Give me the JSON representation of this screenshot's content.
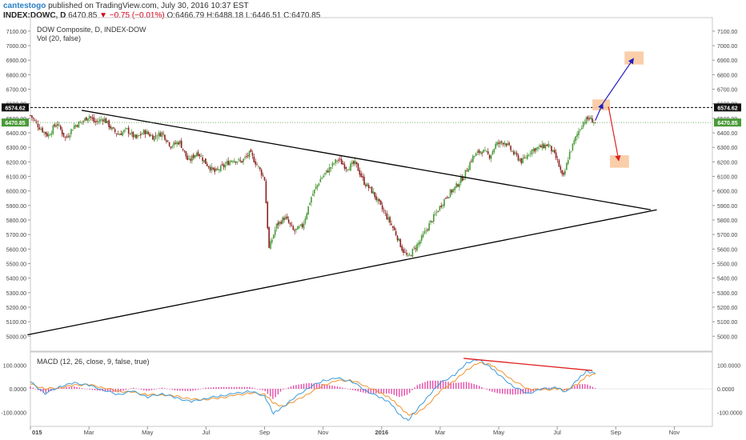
{
  "header": {
    "user": "cantestogo",
    "published": "published on TradingView.com, July 30, 2016 10:37 EST",
    "symbol": "INDEX:DOWC, D",
    "price": "6470.85",
    "arrow": "▼",
    "change": "−0.75 (−0.01%)",
    "ohlc": "O:6466.79 H:6488.18 L:6446.51 C:6470.85"
  },
  "legend": {
    "title": "DOW Composite, D, INDEX-DOW",
    "vol": "Vol (20, false)",
    "macd": "MACD (12, 26, close, 9, false, true)"
  },
  "price_labels": {
    "high": "6574.62",
    "last": "6470.85"
  },
  "colors": {
    "up": "#4a9a38",
    "down": "#8b1f1f",
    "macd_line": "#3a9ad9",
    "signal_line": "#f0922b",
    "histogram": "#e64aa8",
    "trend_line": "#000000",
    "last_badge": "#4a9a38",
    "target_box": "#f8c9a0",
    "arrow_up": "#1f1fbf",
    "arrow_down": "#e02020",
    "divergence": "#e02020"
  },
  "chart_data": [
    {
      "type": "candlestick",
      "title": "DOW Composite, D, INDEX-DOW",
      "yticks": [
        5000,
        5100,
        5200,
        5300,
        5400,
        5500,
        5600,
        5700,
        5800,
        5900,
        6000,
        6100,
        6200,
        6300,
        6400,
        6500,
        6600,
        6700,
        6800,
        6900,
        7000,
        7100
      ],
      "ytick_labels": [
        "5000.00",
        "5100.00",
        "5200.00",
        "5300.00",
        "5400.00",
        "5500.00",
        "5600.00",
        "5700.00",
        "5800.00",
        "5900.00",
        "6000.00",
        "6100.00",
        "6200.00",
        "6300.00",
        "6400.00",
        "6500.00",
        "6600.00",
        "6700.00",
        "6800.00",
        "6900.00",
        "7000.00",
        "7100.00"
      ],
      "ylim": [
        4930,
        7160
      ],
      "xtick_labels": [
        "015",
        "Mar",
        "May",
        "Jul",
        "Sep",
        "Nov",
        "2016",
        "Mar",
        "May",
        "Jul",
        "Sep",
        "Nov"
      ],
      "xlim_months": [
        0,
        23.3
      ],
      "xtick_months": [
        0,
        2,
        4,
        6,
        8,
        10,
        12,
        14,
        16,
        18,
        20,
        22
      ],
      "price_path": [
        [
          0,
          6520
        ],
        [
          0.3,
          6440
        ],
        [
          0.6,
          6380
        ],
        [
          0.9,
          6470
        ],
        [
          1.2,
          6360
        ],
        [
          1.5,
          6450
        ],
        [
          1.8,
          6480
        ],
        [
          2.0,
          6520
        ],
        [
          2.2,
          6470
        ],
        [
          2.5,
          6500
        ],
        [
          2.8,
          6420
        ],
        [
          3.0,
          6390
        ],
        [
          3.3,
          6420
        ],
        [
          3.6,
          6360
        ],
        [
          3.9,
          6410
        ],
        [
          4.2,
          6370
        ],
        [
          4.5,
          6400
        ],
        [
          4.8,
          6310
        ],
        [
          5.1,
          6340
        ],
        [
          5.4,
          6200
        ],
        [
          5.7,
          6270
        ],
        [
          6.0,
          6190
        ],
        [
          6.3,
          6130
        ],
        [
          6.6,
          6170
        ],
        [
          6.9,
          6220
        ],
        [
          7.2,
          6200
        ],
        [
          7.5,
          6260
        ],
        [
          7.8,
          6160
        ],
        [
          8.0,
          6080
        ],
        [
          8.15,
          5600
        ],
        [
          8.4,
          5760
        ],
        [
          8.7,
          5820
        ],
        [
          9.0,
          5720
        ],
        [
          9.3,
          5760
        ],
        [
          9.6,
          5960
        ],
        [
          9.9,
          6080
        ],
        [
          10.2,
          6150
        ],
        [
          10.5,
          6220
        ],
        [
          10.8,
          6160
        ],
        [
          11.1,
          6190
        ],
        [
          11.4,
          6060
        ],
        [
          11.7,
          5990
        ],
        [
          12.0,
          5880
        ],
        [
          12.3,
          5780
        ],
        [
          12.5,
          5700
        ],
        [
          12.7,
          5600
        ],
        [
          12.9,
          5540
        ],
        [
          13.1,
          5600
        ],
        [
          13.3,
          5650
        ],
        [
          13.6,
          5760
        ],
        [
          13.9,
          5860
        ],
        [
          14.2,
          5960
        ],
        [
          14.5,
          6020
        ],
        [
          14.8,
          6100
        ],
        [
          15.1,
          6230
        ],
        [
          15.4,
          6280
        ],
        [
          15.7,
          6240
        ],
        [
          15.9,
          6320
        ],
        [
          16.2,
          6340
        ],
        [
          16.5,
          6260
        ],
        [
          16.8,
          6200
        ],
        [
          17.1,
          6280
        ],
        [
          17.4,
          6300
        ],
        [
          17.7,
          6320
        ],
        [
          18.0,
          6210
        ],
        [
          18.2,
          6080
        ],
        [
          18.4,
          6250
        ],
        [
          18.7,
          6400
        ],
        [
          18.9,
          6480
        ],
        [
          19.1,
          6500
        ],
        [
          19.3,
          6470
        ]
      ],
      "trendlines": [
        {
          "from": [
            1.75,
            6555
          ],
          "to": [
            21.2,
            5870
          ]
        },
        {
          "from": [
            -0.1,
            5010
          ],
          "to": [
            21.4,
            5870
          ]
        }
      ],
      "resistance": 6574.62,
      "last_price": 6470.85,
      "target_boxes": [
        {
          "x": [
            19.2,
            19.8
          ],
          "y": [
            6555,
            6630
          ],
          "note": ""
        },
        {
          "x": [
            20.3,
            20.95
          ],
          "y": [
            6870,
            6960
          ],
          "note": ""
        },
        {
          "x": [
            19.8,
            20.45
          ],
          "y": [
            6160,
            6245
          ],
          "note": ""
        }
      ],
      "arrows": [
        {
          "from": [
            19.3,
            6485
          ],
          "to": [
            19.55,
            6600
          ],
          "color": "up"
        },
        {
          "from": [
            19.55,
            6600
          ],
          "to": [
            20.6,
            6910
          ],
          "color": "up"
        },
        {
          "from": [
            19.75,
            6580
          ],
          "to": [
            20.1,
            6210
          ],
          "color": "down"
        }
      ]
    },
    {
      "type": "line",
      "title": "MACD (12, 26, close, 9, false, true)",
      "ytick_labels": [
        "100.0000",
        "0.0000",
        "-100.0000"
      ],
      "yticks": [
        100,
        0,
        -100
      ],
      "ylim": [
        -150,
        140
      ],
      "macd_path": [
        [
          0,
          30
        ],
        [
          0.5,
          -20
        ],
        [
          1.0,
          10
        ],
        [
          1.5,
          25
        ],
        [
          2.0,
          15
        ],
        [
          2.5,
          -5
        ],
        [
          3.0,
          -25
        ],
        [
          3.5,
          -10
        ],
        [
          4.0,
          -35
        ],
        [
          4.5,
          -20
        ],
        [
          5.0,
          -40
        ],
        [
          5.5,
          -55
        ],
        [
          6.0,
          -40
        ],
        [
          6.5,
          -30
        ],
        [
          7.0,
          -20
        ],
        [
          7.5,
          -10
        ],
        [
          8.0,
          -30
        ],
        [
          8.3,
          -105
        ],
        [
          8.6,
          -80
        ],
        [
          9.0,
          -40
        ],
        [
          9.5,
          5
        ],
        [
          10.0,
          35
        ],
        [
          10.5,
          45
        ],
        [
          11.0,
          30
        ],
        [
          11.5,
          -10
        ],
        [
          12.0,
          -40
        ],
        [
          12.3,
          -60
        ],
        [
          12.6,
          -110
        ],
        [
          12.9,
          -135
        ],
        [
          13.2,
          -90
        ],
        [
          13.6,
          -30
        ],
        [
          14.0,
          25
        ],
        [
          14.5,
          60
        ],
        [
          14.9,
          110
        ],
        [
          15.3,
          125
        ],
        [
          15.7,
          95
        ],
        [
          16.0,
          60
        ],
        [
          16.5,
          10
        ],
        [
          17.0,
          -20
        ],
        [
          17.5,
          0
        ],
        [
          18.0,
          5
        ],
        [
          18.3,
          -15
        ],
        [
          18.7,
          40
        ],
        [
          19.0,
          75
        ],
        [
          19.3,
          65
        ]
      ],
      "signal_path": [
        [
          0,
          20
        ],
        [
          0.5,
          0
        ],
        [
          1.0,
          5
        ],
        [
          1.5,
          15
        ],
        [
          2.0,
          18
        ],
        [
          2.5,
          5
        ],
        [
          3.0,
          -10
        ],
        [
          3.5,
          -15
        ],
        [
          4.0,
          -25
        ],
        [
          4.5,
          -25
        ],
        [
          5.0,
          -32
        ],
        [
          5.5,
          -45
        ],
        [
          6.0,
          -45
        ],
        [
          6.5,
          -38
        ],
        [
          7.0,
          -28
        ],
        [
          7.5,
          -18
        ],
        [
          8.0,
          -22
        ],
        [
          8.3,
          -60
        ],
        [
          8.6,
          -75
        ],
        [
          9.0,
          -55
        ],
        [
          9.5,
          -20
        ],
        [
          10.0,
          15
        ],
        [
          10.5,
          35
        ],
        [
          11.0,
          35
        ],
        [
          11.5,
          10
        ],
        [
          12.0,
          -20
        ],
        [
          12.3,
          -40
        ],
        [
          12.6,
          -75
        ],
        [
          12.9,
          -110
        ],
        [
          13.2,
          -105
        ],
        [
          13.6,
          -65
        ],
        [
          14.0,
          -10
        ],
        [
          14.5,
          35
        ],
        [
          14.9,
          80
        ],
        [
          15.3,
          110
        ],
        [
          15.7,
          105
        ],
        [
          16.0,
          80
        ],
        [
          16.5,
          35
        ],
        [
          17.0,
          0
        ],
        [
          17.5,
          -5
        ],
        [
          18.0,
          0
        ],
        [
          18.3,
          -5
        ],
        [
          18.7,
          20
        ],
        [
          19.0,
          55
        ],
        [
          19.3,
          62
        ]
      ],
      "divergence_line": {
        "from": [
          14.8,
          130
        ],
        "to": [
          19.2,
          78
        ]
      }
    }
  ]
}
